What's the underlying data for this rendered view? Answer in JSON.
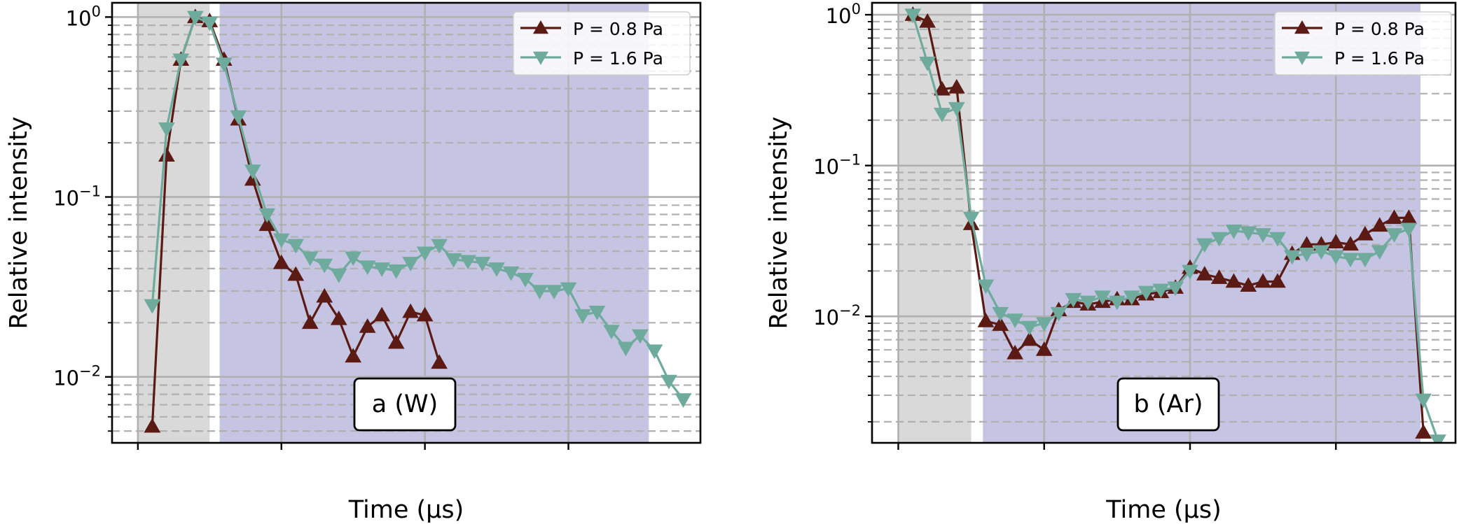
{
  "colors": {
    "series_08": "#5c1a14",
    "series_16": "#6fab9d",
    "gray_span": "#d9d9d9",
    "purple_span": "#c5c5e3",
    "grid_major": "#b0b0b0",
    "grid_minor": "#b0b0b0"
  },
  "chart_data": [
    {
      "type": "line",
      "panel_label": "a (W)",
      "xlabel": "Time (μs)",
      "ylabel": "Relative intensity",
      "yscale": "log",
      "xlim": [
        -18,
        392
      ],
      "ylim": [
        0.0043,
        1.2
      ],
      "xticks": [
        0,
        100,
        200,
        300
      ],
      "yticks": [
        {
          "value": 0.01,
          "base": "10",
          "exp": "−2"
        },
        {
          "value": 0.1,
          "base": "10",
          "exp": "−1"
        },
        {
          "value": 1,
          "base": "10",
          "exp": "0"
        }
      ],
      "grid": true,
      "legend_position": "top-right",
      "shaded_spans": [
        {
          "from": 0,
          "to": 50,
          "color": "gray"
        },
        {
          "from": 57,
          "to": 356,
          "color": "purple"
        }
      ],
      "series": [
        {
          "name": "P = 0.8 Pa",
          "marker": "triangle-up",
          "points": [
            [
              10,
              0.0053
            ],
            [
              20,
              0.17
            ],
            [
              30,
              0.58
            ],
            [
              40,
              1.0
            ],
            [
              50,
              0.95
            ],
            [
              60,
              0.58
            ],
            [
              70,
              0.27
            ],
            [
              80,
              0.125
            ],
            [
              90,
              0.07
            ],
            [
              100,
              0.043
            ],
            [
              110,
              0.037
            ],
            [
              120,
              0.02
            ],
            [
              130,
              0.028
            ],
            [
              140,
              0.021
            ],
            [
              150,
              0.013
            ],
            [
              160,
              0.019
            ],
            [
              170,
              0.022
            ],
            [
              180,
              0.0155
            ],
            [
              190,
              0.023
            ],
            [
              200,
              0.022
            ],
            [
              210,
              0.012
            ]
          ]
        },
        {
          "name": "P = 1.6 Pa",
          "marker": "triangle-down",
          "points": [
            [
              10,
              0.025
            ],
            [
              20,
              0.24
            ],
            [
              30,
              0.58
            ],
            [
              40,
              1.0
            ],
            [
              50,
              0.93
            ],
            [
              60,
              0.55
            ],
            [
              70,
              0.28
            ],
            [
              80,
              0.14
            ],
            [
              90,
              0.08
            ],
            [
              100,
              0.058
            ],
            [
              110,
              0.054
            ],
            [
              120,
              0.046
            ],
            [
              130,
              0.042
            ],
            [
              140,
              0.037
            ],
            [
              150,
              0.046
            ],
            [
              160,
              0.041
            ],
            [
              170,
              0.04
            ],
            [
              180,
              0.039
            ],
            [
              190,
              0.043
            ],
            [
              200,
              0.049
            ],
            [
              210,
              0.054
            ],
            [
              220,
              0.045
            ],
            [
              230,
              0.044
            ],
            [
              240,
              0.043
            ],
            [
              250,
              0.04
            ],
            [
              260,
              0.038
            ],
            [
              270,
              0.035
            ],
            [
              280,
              0.03
            ],
            [
              290,
              0.03
            ],
            [
              300,
              0.031
            ],
            [
              310,
              0.022
            ],
            [
              320,
              0.023
            ],
            [
              330,
              0.018
            ],
            [
              340,
              0.0145
            ],
            [
              350,
              0.017
            ],
            [
              360,
              0.014
            ],
            [
              370,
              0.0095
            ],
            [
              380,
              0.0075
            ]
          ]
        }
      ]
    },
    {
      "type": "line",
      "panel_label": "b (Ar)",
      "xlabel": "Time (μs)",
      "ylabel": "Relative intensity",
      "yscale": "log",
      "xlim": [
        -18,
        382
      ],
      "ylim": [
        0.00145,
        1.2
      ],
      "xticks": [
        0,
        100,
        200,
        300
      ],
      "yticks": [
        {
          "value": 0.01,
          "base": "10",
          "exp": "−2"
        },
        {
          "value": 0.1,
          "base": "10",
          "exp": "−1"
        },
        {
          "value": 1,
          "base": "10",
          "exp": "0"
        }
      ],
      "grid": true,
      "legend_position": "top-right",
      "shaded_spans": [
        {
          "from": 0,
          "to": 50,
          "color": "gray"
        },
        {
          "from": 58,
          "to": 358,
          "color": "purple"
        }
      ],
      "series": [
        {
          "name": "P = 0.8 Pa",
          "marker": "triangle-up",
          "points": [
            [
              10,
              1.0
            ],
            [
              20,
              0.9
            ],
            [
              30,
              0.32
            ],
            [
              40,
              0.33
            ],
            [
              50,
              0.041
            ],
            [
              60,
              0.0093
            ],
            [
              70,
              0.0088
            ],
            [
              80,
              0.0057
            ],
            [
              90,
              0.007
            ],
            [
              100,
              0.006
            ],
            [
              110,
              0.011
            ],
            [
              120,
              0.0125
            ],
            [
              130,
              0.012
            ],
            [
              140,
              0.0125
            ],
            [
              150,
              0.013
            ],
            [
              160,
              0.013
            ],
            [
              170,
              0.014
            ],
            [
              180,
              0.0145
            ],
            [
              190,
              0.0155
            ],
            [
              200,
              0.021
            ],
            [
              210,
              0.019
            ],
            [
              220,
              0.018
            ],
            [
              230,
              0.017
            ],
            [
              240,
              0.016
            ],
            [
              250,
              0.017
            ],
            [
              260,
              0.017
            ],
            [
              270,
              0.026
            ],
            [
              280,
              0.03
            ],
            [
              290,
              0.03
            ],
            [
              300,
              0.031
            ],
            [
              310,
              0.03
            ],
            [
              320,
              0.035
            ],
            [
              330,
              0.04
            ],
            [
              340,
              0.045
            ],
            [
              350,
              0.045
            ],
            [
              360,
              0.0017
            ]
          ]
        },
        {
          "name": "P = 1.6 Pa",
          "marker": "triangle-down",
          "points": [
            [
              10,
              1.0
            ],
            [
              20,
              0.48
            ],
            [
              30,
              0.22
            ],
            [
              40,
              0.24
            ],
            [
              50,
              0.045
            ],
            [
              60,
              0.016
            ],
            [
              70,
              0.0105
            ],
            [
              80,
              0.0095
            ],
            [
              90,
              0.0085
            ],
            [
              100,
              0.009
            ],
            [
              110,
              0.0105
            ],
            [
              120,
              0.013
            ],
            [
              130,
              0.0125
            ],
            [
              140,
              0.0135
            ],
            [
              150,
              0.0125
            ],
            [
              160,
              0.0135
            ],
            [
              170,
              0.0145
            ],
            [
              180,
              0.015
            ],
            [
              190,
              0.0155
            ],
            [
              200,
              0.02
            ],
            [
              210,
              0.03
            ],
            [
              220,
              0.033
            ],
            [
              230,
              0.037
            ],
            [
              240,
              0.036
            ],
            [
              250,
              0.035
            ],
            [
              260,
              0.033
            ],
            [
              270,
              0.025
            ],
            [
              280,
              0.026
            ],
            [
              290,
              0.027
            ],
            [
              300,
              0.025
            ],
            [
              310,
              0.024
            ],
            [
              320,
              0.024
            ],
            [
              330,
              0.027
            ],
            [
              340,
              0.035
            ],
            [
              350,
              0.038
            ],
            [
              360,
              0.0028
            ],
            [
              370,
              0.0015
            ]
          ]
        }
      ]
    }
  ]
}
